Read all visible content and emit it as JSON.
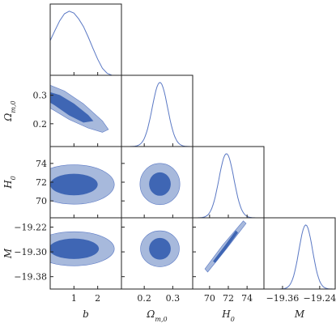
{
  "chart_data": {
    "type": "corner",
    "parameters": [
      {
        "key": "b",
        "label": "b",
        "range": [
          0,
          3
        ],
        "ticks": [
          1,
          2
        ],
        "tick_labels": [
          "1",
          "2"
        ]
      },
      {
        "key": "Om",
        "label": "Ωm,0",
        "label_main": "Ω",
        "label_sub": "m,0",
        "range": [
          0.12,
          0.37
        ],
        "ticks": [
          0.2,
          0.3
        ],
        "tick_labels": [
          "0.2",
          "0.3"
        ]
      },
      {
        "key": "H0",
        "label": "H0",
        "label_main": "H",
        "label_sub": "0",
        "range": [
          68.2,
          75.8
        ],
        "ticks": [
          70,
          72,
          74
        ],
        "tick_labels": [
          "70",
          "72",
          "74"
        ]
      },
      {
        "key": "M",
        "label": "M",
        "range": [
          -19.42,
          -19.19
        ],
        "ticks": [
          -19.36,
          -19.24
        ],
        "tick_labels": [
          "−19.36",
          "−19.24"
        ],
        "y_ticks": [
          -19.38,
          -19.3,
          -19.22
        ],
        "y_tick_labels": [
          "−19.38",
          "−19.30",
          "−19.22"
        ]
      }
    ],
    "marginals": [
      {
        "param": "b",
        "x": [
          0,
          0.2,
          0.4,
          0.6,
          0.8,
          1.0,
          1.2,
          1.4,
          1.6,
          1.8,
          2.0,
          2.2,
          2.4,
          2.6
        ],
        "y": [
          0.54,
          0.7,
          0.85,
          0.96,
          1.0,
          0.97,
          0.88,
          0.76,
          0.6,
          0.42,
          0.25,
          0.11,
          0.03,
          0.0
        ]
      },
      {
        "param": "Om",
        "mean": 0.255,
        "sigma": 0.027
      },
      {
        "param": "H0",
        "mean": 71.8,
        "sigma": 0.8
      },
      {
        "param": "M",
        "mean": -19.285,
        "sigma": 0.022
      }
    ],
    "contours": [
      {
        "x": "b",
        "y": "Om",
        "inner": [
          [
            0.0,
            0.31
          ],
          [
            0.4,
            0.3
          ],
          [
            1.0,
            0.27
          ],
          [
            1.6,
            0.23
          ],
          [
            1.8,
            0.21
          ],
          [
            1.4,
            0.205
          ],
          [
            0.8,
            0.23
          ],
          [
            0.2,
            0.265
          ],
          [
            0.0,
            0.275
          ]
        ],
        "outer": [
          [
            0.0,
            0.335
          ],
          [
            0.6,
            0.315
          ],
          [
            1.4,
            0.27
          ],
          [
            2.2,
            0.21
          ],
          [
            2.45,
            0.18
          ],
          [
            2.2,
            0.17
          ],
          [
            1.6,
            0.185
          ],
          [
            0.8,
            0.215
          ],
          [
            0.2,
            0.245
          ],
          [
            0.0,
            0.255
          ]
        ]
      },
      {
        "x": "b",
        "y": "H0",
        "center": [
          1.0,
          71.75
        ],
        "inner_r": [
          1.0,
          1.15
        ],
        "outer_r": [
          1.7,
          2.1
        ]
      },
      {
        "x": "Om",
        "y": "H0",
        "center": [
          0.255,
          71.8
        ],
        "inner_r": [
          0.038,
          1.25
        ],
        "outer_r": [
          0.07,
          2.2
        ]
      },
      {
        "x": "b",
        "y": "M",
        "center": [
          1.0,
          -19.29
        ],
        "inner_r": [
          1.05,
          0.033
        ],
        "outer_r": [
          1.7,
          0.055
        ]
      },
      {
        "x": "Om",
        "y": "M",
        "center": [
          0.255,
          -19.29
        ],
        "inner_r": [
          0.038,
          0.035
        ],
        "outer_r": [
          0.068,
          0.058
        ]
      },
      {
        "x": "H0",
        "y": "M",
        "inner": [
          [
            70.6,
            -19.335
          ],
          [
            71.8,
            -19.288
          ],
          [
            73.0,
            -19.238
          ],
          [
            72.8,
            -19.232
          ],
          [
            71.6,
            -19.282
          ],
          [
            70.4,
            -19.33
          ]
        ],
        "outer": [
          [
            69.8,
            -19.365
          ],
          [
            71.8,
            -19.29
          ],
          [
            73.9,
            -19.208
          ],
          [
            73.6,
            -19.2
          ],
          [
            71.4,
            -19.278
          ],
          [
            69.5,
            -19.355
          ]
        ]
      }
    ],
    "colors": {
      "inner_fill": "#3f66b4",
      "outer_fill": "#a7b9dc",
      "line": "#5a78c4",
      "axis": "#222222"
    },
    "grid": false,
    "legend": "none"
  }
}
